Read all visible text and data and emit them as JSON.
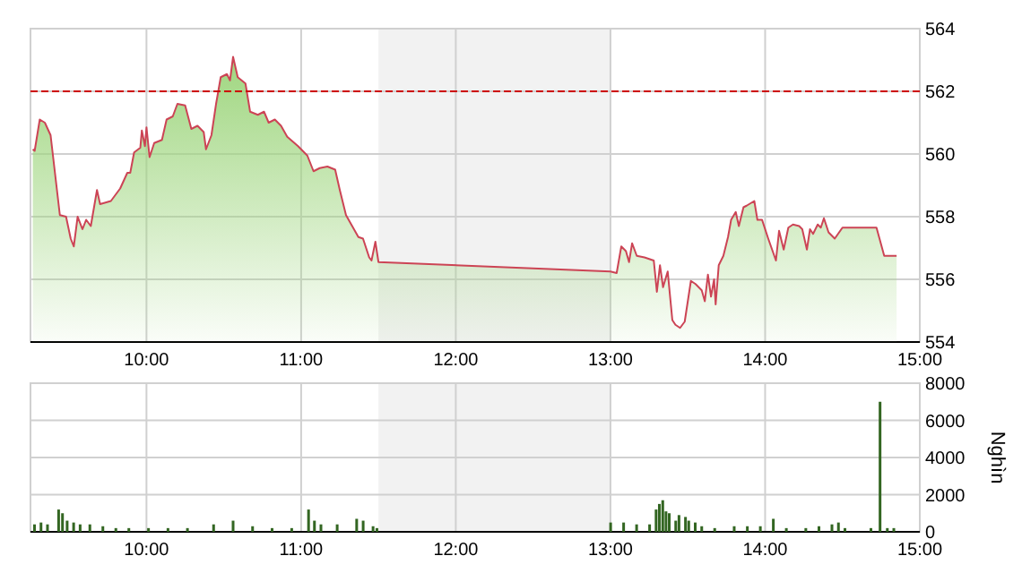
{
  "chart_data": [
    {
      "type": "area",
      "xlim": [
        9.25,
        15
      ],
      "ylim": [
        554,
        564
      ],
      "yticks": [
        554,
        556,
        558,
        560,
        562,
        564
      ],
      "xticks": [
        {
          "value": 10,
          "label": "10:00"
        },
        {
          "value": 11,
          "label": "11:00"
        },
        {
          "value": 12,
          "label": "12:00"
        },
        {
          "value": 13,
          "label": "13:00"
        },
        {
          "value": 14,
          "label": "14:00"
        },
        {
          "value": 15,
          "label": "15:00"
        }
      ],
      "grid": true,
      "ref_lines": [
        {
          "axis": "y",
          "value": 562,
          "color": "#cc0000",
          "line_style": "dashed"
        }
      ],
      "bands": [
        {
          "axis": "x",
          "from": 11.5,
          "to": 13,
          "color": "#f2f2f2"
        }
      ],
      "series": [
        {
          "color": "#9fd67f",
          "x": [
            9.265,
            9.277,
            9.31,
            9.343,
            9.38,
            9.44,
            9.48,
            9.51,
            9.53,
            9.555,
            9.586,
            9.61,
            9.64,
            9.68,
            9.7,
            9.77,
            9.83,
            9.876,
            9.895,
            9.92,
            9.96,
            9.97,
            9.99,
            10.0,
            10.02,
            10.05,
            10.1,
            10.13,
            10.17,
            10.2,
            10.25,
            10.29,
            10.33,
            10.37,
            10.385,
            10.42,
            10.45,
            10.48,
            10.52,
            10.54,
            10.56,
            10.59,
            10.64,
            10.67,
            10.72,
            10.76,
            10.79,
            10.83,
            10.87,
            10.91,
            10.98,
            11.04,
            11.08,
            11.12,
            11.17,
            11.22,
            11.25,
            11.29,
            11.33,
            11.37,
            11.4,
            11.44,
            11.455,
            11.48,
            11.5,
            13.0,
            13.04,
            13.07,
            13.1,
            13.12,
            13.14,
            13.17,
            13.22,
            13.28,
            13.3,
            13.32,
            13.34,
            13.37,
            13.4,
            13.42,
            13.45,
            13.48,
            13.52,
            13.55,
            13.59,
            13.61,
            13.63,
            13.65,
            13.67,
            13.68,
            13.7,
            13.73,
            13.76,
            13.78,
            13.81,
            13.83,
            13.86,
            13.88,
            13.93,
            13.95,
            13.98,
            14.02,
            14.07,
            14.09,
            14.12,
            14.15,
            14.18,
            14.22,
            14.24,
            14.27,
            14.29,
            14.31,
            14.34,
            14.36,
            14.38,
            14.41,
            14.45,
            14.5,
            14.72,
            14.77,
            14.85
          ],
          "values": [
            560.15,
            560.1,
            561.1,
            561.0,
            560.6,
            558.05,
            558.0,
            557.3,
            557.05,
            558.0,
            557.6,
            557.9,
            557.7,
            558.85,
            558.4,
            558.5,
            558.9,
            559.4,
            559.4,
            560.05,
            560.2,
            560.75,
            560.25,
            560.85,
            559.9,
            560.35,
            560.45,
            561.1,
            561.2,
            561.6,
            561.55,
            560.8,
            560.9,
            560.7,
            560.15,
            560.6,
            561.6,
            562.45,
            562.55,
            562.35,
            563.1,
            562.45,
            562.25,
            561.35,
            561.25,
            561.35,
            561.0,
            561.1,
            560.9,
            560.55,
            560.25,
            559.95,
            559.45,
            559.55,
            559.6,
            559.5,
            558.85,
            558.05,
            557.7,
            557.35,
            557.3,
            556.7,
            556.6,
            557.2,
            556.55,
            556.25,
            556.2,
            557.05,
            556.9,
            556.55,
            557.15,
            556.75,
            556.7,
            556.6,
            555.6,
            556.45,
            555.75,
            556.25,
            554.7,
            554.55,
            554.45,
            554.65,
            555.95,
            555.85,
            555.65,
            555.3,
            556.15,
            555.45,
            556.0,
            555.2,
            556.45,
            556.75,
            557.35,
            557.9,
            558.15,
            557.7,
            558.3,
            558.35,
            558.5,
            557.9,
            557.9,
            557.3,
            556.6,
            557.55,
            556.95,
            557.65,
            557.75,
            557.7,
            557.6,
            556.95,
            557.6,
            557.45,
            557.75,
            557.65,
            557.95,
            557.5,
            557.3,
            557.65,
            557.65,
            556.75,
            556.75
          ]
        }
      ]
    },
    {
      "type": "bar",
      "xlim": [
        9.25,
        15
      ],
      "ylim": [
        0,
        8000
      ],
      "yticks": [
        0,
        2000,
        4000,
        6000,
        8000
      ],
      "ylabel": "Nghìn",
      "xticks": [
        {
          "value": 10,
          "label": "10:00"
        },
        {
          "value": 11,
          "label": "11:00"
        },
        {
          "value": 12,
          "label": "12:00"
        },
        {
          "value": 13,
          "label": "13:00"
        },
        {
          "value": 14,
          "label": "14:00"
        },
        {
          "value": 15,
          "label": "15:00"
        }
      ],
      "grid": true,
      "bands": [
        {
          "axis": "x",
          "from": 11.5,
          "to": 13,
          "color": "#f2f2f2"
        }
      ],
      "series": [
        {
          "color": "#336622",
          "x": [
            9.276,
            9.318,
            9.36,
            9.432,
            9.457,
            9.487,
            9.529,
            9.571,
            9.634,
            9.718,
            9.802,
            9.886,
            10.013,
            10.139,
            10.265,
            10.434,
            10.56,
            10.686,
            10.812,
            10.939,
            11.048,
            11.086,
            11.128,
            11.233,
            11.359,
            11.401,
            11.465,
            11.49,
            13.001,
            13.085,
            13.169,
            13.253,
            13.295,
            13.316,
            13.338,
            13.359,
            13.38,
            13.422,
            13.443,
            13.485,
            13.506,
            13.548,
            13.59,
            13.674,
            13.8,
            13.885,
            13.969,
            14.053,
            14.137,
            14.263,
            14.348,
            14.432,
            14.474,
            14.516,
            14.684,
            14.743,
            14.79,
            14.832
          ],
          "values": [
            400,
            500,
            400,
            1200,
            1000,
            600,
            500,
            400,
            400,
            300,
            200,
            200,
            200,
            200,
            200,
            400,
            600,
            300,
            200,
            200,
            1200,
            600,
            400,
            400,
            700,
            600,
            300,
            200,
            500,
            500,
            400,
            400,
            1200,
            1500,
            1700,
            1100,
            1000,
            600,
            900,
            800,
            600,
            500,
            300,
            200,
            300,
            300,
            300,
            700,
            200,
            200,
            300,
            400,
            500,
            200,
            200,
            7000,
            200,
            200
          ]
        }
      ]
    }
  ]
}
